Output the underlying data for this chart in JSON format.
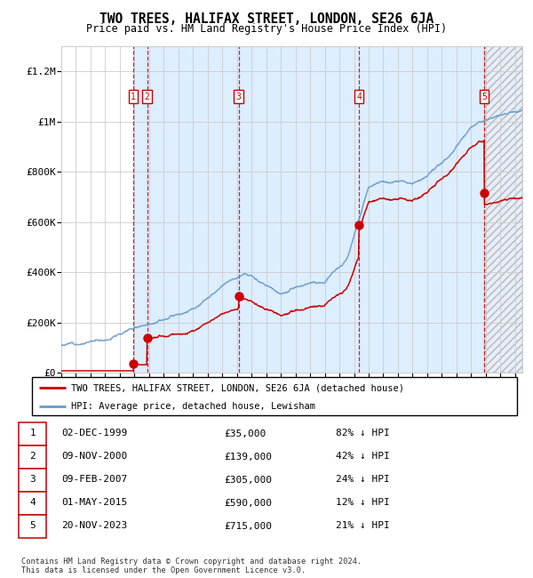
{
  "title": "TWO TREES, HALIFAX STREET, LONDON, SE26 6JA",
  "subtitle": "Price paid vs. HM Land Registry's House Price Index (HPI)",
  "footer1": "Contains HM Land Registry data © Crown copyright and database right 2024.",
  "footer2": "This data is licensed under the Open Government Licence v3.0.",
  "legend_red": "TWO TREES, HALIFAX STREET, LONDON, SE26 6JA (detached house)",
  "legend_blue": "HPI: Average price, detached house, Lewisham",
  "transactions": [
    {
      "num": 1,
      "date": "02-DEC-1999",
      "price": 35000,
      "pct": "82%",
      "year_x": 1999.92
    },
    {
      "num": 2,
      "date": "09-NOV-2000",
      "price": 139000,
      "pct": "42%",
      "year_x": 2000.86
    },
    {
      "num": 3,
      "date": "09-FEB-2007",
      "price": 305000,
      "pct": "24%",
      "year_x": 2007.11
    },
    {
      "num": 4,
      "date": "01-MAY-2015",
      "price": 590000,
      "pct": "12%",
      "year_x": 2015.33
    },
    {
      "num": 5,
      "date": "20-NOV-2023",
      "price": 715000,
      "pct": "21%",
      "year_x": 2023.89
    }
  ],
  "xmin": 1995.0,
  "xmax": 2026.5,
  "ymin": 0,
  "ymax": 1300000,
  "yticks": [
    0,
    200000,
    400000,
    600000,
    800000,
    1000000,
    1200000
  ],
  "ytick_labels": [
    "£0",
    "£200K",
    "£400K",
    "£600K",
    "£800K",
    "£1M",
    "£1.2M"
  ],
  "red_color": "#cc0000",
  "blue_color": "#6699cc",
  "shade_color": "#ddeeff",
  "hatch_color": "#aabbcc",
  "dashed_color": "#cc0000",
  "background": "#ffffff",
  "grid_color": "#cccccc",
  "hpi_anchors": [
    [
      1995.0,
      110000
    ],
    [
      1998.0,
      145000
    ],
    [
      2001.0,
      230000
    ],
    [
      2004.0,
      310000
    ],
    [
      2007.5,
      440000
    ],
    [
      2009.0,
      390000
    ],
    [
      2010.0,
      360000
    ],
    [
      2011.0,
      380000
    ],
    [
      2013.0,
      400000
    ],
    [
      2014.5,
      500000
    ],
    [
      2016.0,
      780000
    ],
    [
      2017.0,
      800000
    ],
    [
      2018.0,
      790000
    ],
    [
      2019.0,
      790000
    ],
    [
      2020.0,
      810000
    ],
    [
      2021.5,
      870000
    ],
    [
      2022.5,
      950000
    ],
    [
      2023.0,
      980000
    ],
    [
      2024.0,
      1010000
    ],
    [
      2025.0,
      1030000
    ],
    [
      2026.5,
      1060000
    ]
  ],
  "noise_seed": 12
}
